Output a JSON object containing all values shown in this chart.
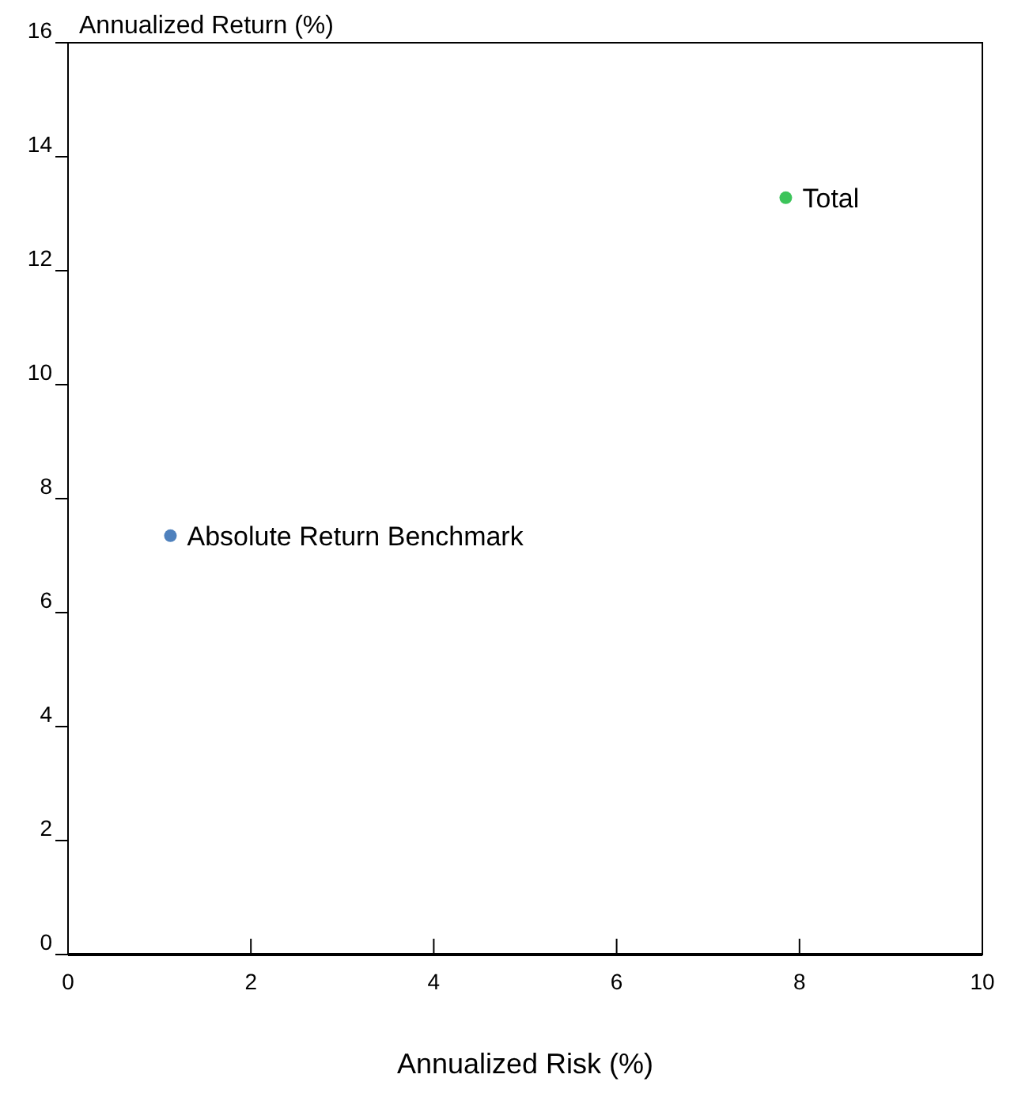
{
  "chart_data": {
    "type": "scatter",
    "xlabel": "Annualized Risk (%)",
    "ylabel": "Annualized Return (%)",
    "series": [
      {
        "name": "Absolute Return Benchmark",
        "color": "#4f81bd",
        "x": [
          1.12
        ],
        "values": [
          7.35
        ]
      },
      {
        "name": "Total",
        "color": "#3cc45a",
        "x": [
          7.85
        ],
        "values": [
          13.28
        ]
      }
    ],
    "xlim": [
      0,
      10
    ],
    "xticks": [
      0,
      2,
      4,
      6,
      8,
      10
    ],
    "ylim": [
      0,
      16
    ],
    "yticks": [
      0,
      2,
      4,
      6,
      8,
      10,
      12,
      14,
      16
    ],
    "grid": false,
    "legend": false,
    "marker": "circle"
  }
}
